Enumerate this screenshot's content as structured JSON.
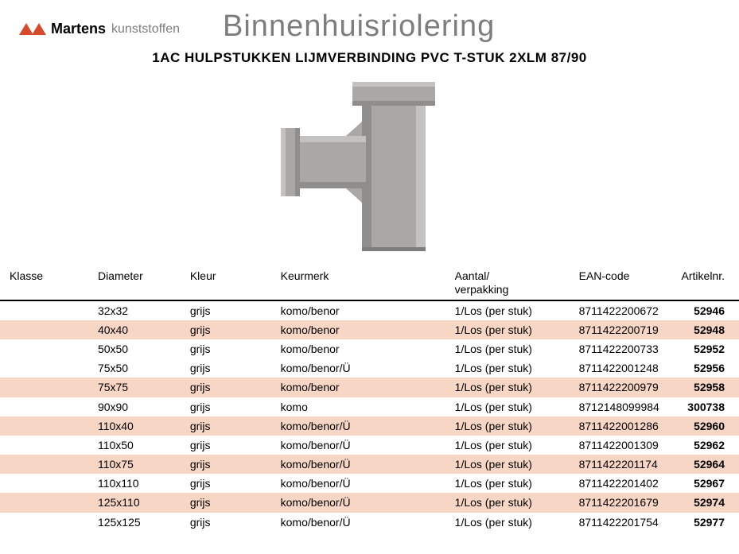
{
  "header": {
    "brand": "Martens",
    "brand_sub": "kunststoffen",
    "category": "Binnenhuisriolering",
    "subtitle": "1AC HULPSTUKKEN LIJMVERBINDING PVC T-STUK 2XLM 87/90"
  },
  "product_svg": {
    "fill_main": "#a9a8a6",
    "fill_shadow": "#8f8e8c",
    "fill_highlight": "#c3c2c0"
  },
  "table": {
    "columns": [
      "Klasse",
      "Diameter",
      "Kleur",
      "Keurmerk",
      "Aantal/\nverpakking",
      "EAN-code",
      "Artikelnr."
    ],
    "highlight_color": "#f8d6c6",
    "rows": [
      {
        "hl": false,
        "klasse": "",
        "diameter": "32x32",
        "kleur": "grijs",
        "keurmerk": "komo/benor",
        "aantal": "1/Los (per stuk)",
        "ean": "8711422200672",
        "art": "52946"
      },
      {
        "hl": true,
        "klasse": "",
        "diameter": "40x40",
        "kleur": "grijs",
        "keurmerk": "komo/benor",
        "aantal": "1/Los (per stuk)",
        "ean": "8711422200719",
        "art": "52948"
      },
      {
        "hl": false,
        "klasse": "",
        "diameter": "50x50",
        "kleur": "grijs",
        "keurmerk": "komo/benor",
        "aantal": "1/Los (per stuk)",
        "ean": "8711422200733",
        "art": "52952"
      },
      {
        "hl": false,
        "klasse": "",
        "diameter": "75x50",
        "kleur": "grijs",
        "keurmerk": "komo/benor/Ü",
        "aantal": "1/Los (per stuk)",
        "ean": "8711422001248",
        "art": "52956"
      },
      {
        "hl": true,
        "klasse": "",
        "diameter": "75x75",
        "kleur": "grijs",
        "keurmerk": "komo/benor",
        "aantal": "1/Los (per stuk)",
        "ean": "8711422200979",
        "art": "52958"
      },
      {
        "hl": false,
        "klasse": "",
        "diameter": "90x90",
        "kleur": "grijs",
        "keurmerk": "komo",
        "aantal": "1/Los (per stuk)",
        "ean": "8712148099984",
        "art": "300738"
      },
      {
        "hl": true,
        "klasse": "",
        "diameter": "110x40",
        "kleur": "grijs",
        "keurmerk": "komo/benor/Ü",
        "aantal": "1/Los (per stuk)",
        "ean": "8711422001286",
        "art": "52960"
      },
      {
        "hl": false,
        "klasse": "",
        "diameter": "110x50",
        "kleur": "grijs",
        "keurmerk": "komo/benor/Ü",
        "aantal": "1/Los (per stuk)",
        "ean": "8711422001309",
        "art": "52962"
      },
      {
        "hl": true,
        "klasse": "",
        "diameter": "110x75",
        "kleur": "grijs",
        "keurmerk": "komo/benor/Ü",
        "aantal": "1/Los (per stuk)",
        "ean": "8711422201174",
        "art": "52964"
      },
      {
        "hl": false,
        "klasse": "",
        "diameter": "110x110",
        "kleur": "grijs",
        "keurmerk": "komo/benor/Ü",
        "aantal": "1/Los (per stuk)",
        "ean": "8711422201402",
        "art": "52967"
      },
      {
        "hl": true,
        "klasse": "",
        "diameter": "125x110",
        "kleur": "grijs",
        "keurmerk": "komo/benor/Ü",
        "aantal": "1/Los (per stuk)",
        "ean": "8711422201679",
        "art": "52974"
      },
      {
        "hl": false,
        "klasse": "",
        "diameter": "125x125",
        "kleur": "grijs",
        "keurmerk": "komo/benor/Ü",
        "aantal": "1/Los (per stuk)",
        "ean": "8711422201754",
        "art": "52977"
      }
    ]
  }
}
